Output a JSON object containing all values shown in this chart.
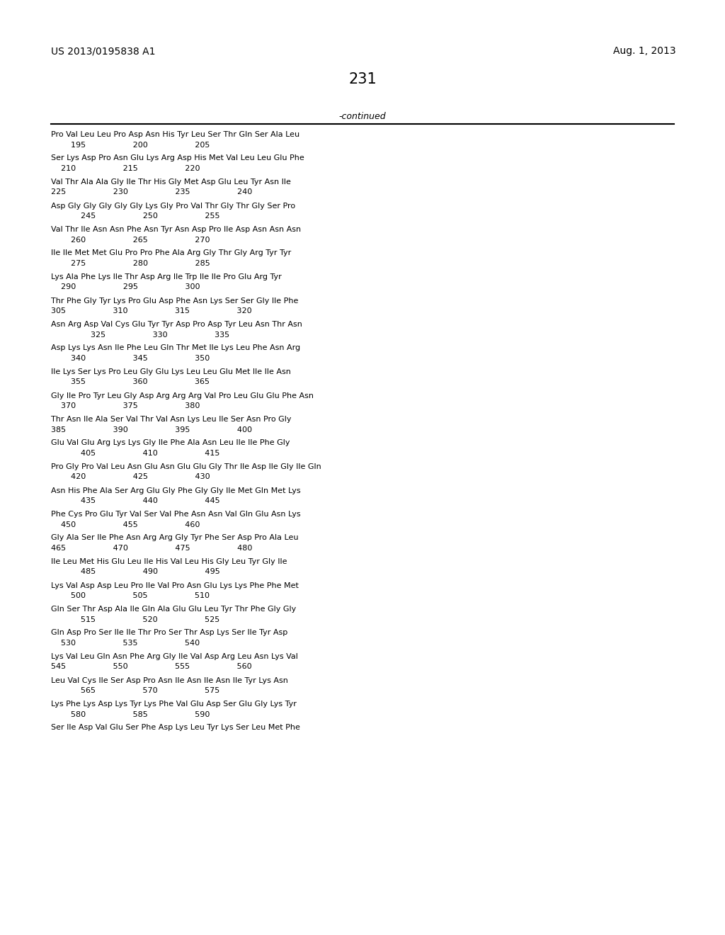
{
  "patent_left": "US 2013/0195838 A1",
  "patent_right": "Aug. 1, 2013",
  "page_number": "231",
  "continued_label": "-continued",
  "background_color": "#ffffff",
  "text_color": "#000000",
  "lines_data": [
    [
      "Pro Val Leu Leu Pro Asp Asn His Tyr Leu Ser Thr Gln Ser Ala Leu",
      "        195                   200                   205"
    ],
    [
      "Ser Lys Asp Pro Asn Glu Lys Arg Asp His Met Val Leu Leu Glu Phe",
      "    210                   215                   220"
    ],
    [
      "Val Thr Ala Ala Gly Ile Thr His Gly Met Asp Glu Leu Tyr Asn Ile",
      "225                   230                   235                   240"
    ],
    [
      "Asp Gly Gly Gly Gly Gly Lys Gly Pro Val Thr Gly Thr Gly Ser Pro",
      "            245                   250                   255"
    ],
    [
      "Val Thr Ile Asn Asn Phe Asn Tyr Asn Asp Pro Ile Asp Asn Asn Asn",
      "        260                   265                   270"
    ],
    [
      "Ile Ile Met Met Glu Pro Pro Phe Ala Arg Gly Thr Gly Arg Tyr Tyr",
      "        275                   280                   285"
    ],
    [
      "Lys Ala Phe Lys Ile Thr Asp Arg Ile Trp Ile Ile Pro Glu Arg Tyr",
      "    290                   295                   300"
    ],
    [
      "Thr Phe Gly Tyr Lys Pro Glu Asp Phe Asn Lys Ser Ser Gly Ile Phe",
      "305                   310                   315                   320"
    ],
    [
      "Asn Arg Asp Val Cys Glu Tyr Tyr Asp Pro Asp Tyr Leu Asn Thr Asn",
      "                325                   330                   335"
    ],
    [
      "Asp Lys Lys Asn Ile Phe Leu Gln Thr Met Ile Lys Leu Phe Asn Arg",
      "        340                   345                   350"
    ],
    [
      "Ile Lys Ser Lys Pro Leu Gly Glu Lys Leu Leu Glu Met Ile Ile Asn",
      "        355                   360                   365"
    ],
    [
      "Gly Ile Pro Tyr Leu Gly Asp Arg Arg Arg Val Pro Leu Glu Glu Phe Asn",
      "    370                   375                   380"
    ],
    [
      "Thr Asn Ile Ala Ser Val Thr Val Asn Lys Leu Ile Ser Asn Pro Gly",
      "385                   390                   395                   400"
    ],
    [
      "Glu Val Glu Arg Lys Lys Gly Ile Phe Ala Asn Leu Ile Ile Phe Gly",
      "            405                   410                   415"
    ],
    [
      "Pro Gly Pro Val Leu Asn Glu Asn Glu Glu Gly Thr Ile Asp Ile Gly Ile Gln",
      "        420                   425                   430"
    ],
    [
      "Asn His Phe Ala Ser Arg Glu Gly Phe Gly Gly Ile Met Gln Met Lys",
      "            435                   440                   445"
    ],
    [
      "Phe Cys Pro Glu Tyr Val Ser Val Phe Asn Asn Val Gln Glu Asn Lys",
      "    450                   455                   460"
    ],
    [
      "Gly Ala Ser Ile Phe Asn Arg Arg Gly Tyr Phe Ser Asp Pro Ala Leu",
      "465                   470                   475                   480"
    ],
    [
      "Ile Leu Met His Glu Leu Ile His Val Leu His Gly Leu Tyr Gly Ile",
      "            485                   490                   495"
    ],
    [
      "Lys Val Asp Asp Leu Pro Ile Val Pro Asn Glu Lys Lys Phe Phe Met",
      "        500                   505                   510"
    ],
    [
      "Gln Ser Thr Asp Ala Ile Gln Ala Glu Glu Leu Tyr Thr Phe Gly Gly",
      "            515                   520                   525"
    ],
    [
      "Gln Asp Pro Ser Ile Ile Thr Pro Ser Thr Asp Lys Ser Ile Tyr Asp",
      "    530                   535                   540"
    ],
    [
      "Lys Val Leu Gln Asn Phe Arg Gly Ile Val Asp Arg Leu Asn Lys Val",
      "545                   550                   555                   560"
    ],
    [
      "Leu Val Cys Ile Ser Asp Pro Asn Ile Asn Ile Asn Ile Tyr Lys Asn",
      "            565                   570                   575"
    ],
    [
      "Lys Phe Lys Asp Lys Tyr Lys Phe Val Glu Asp Ser Glu Gly Lys Tyr",
      "        580                   585                   590"
    ],
    [
      "Ser Ile Asp Val Glu Ser Phe Asp Lys Leu Tyr Lys Ser Leu Met Phe",
      ""
    ]
  ]
}
